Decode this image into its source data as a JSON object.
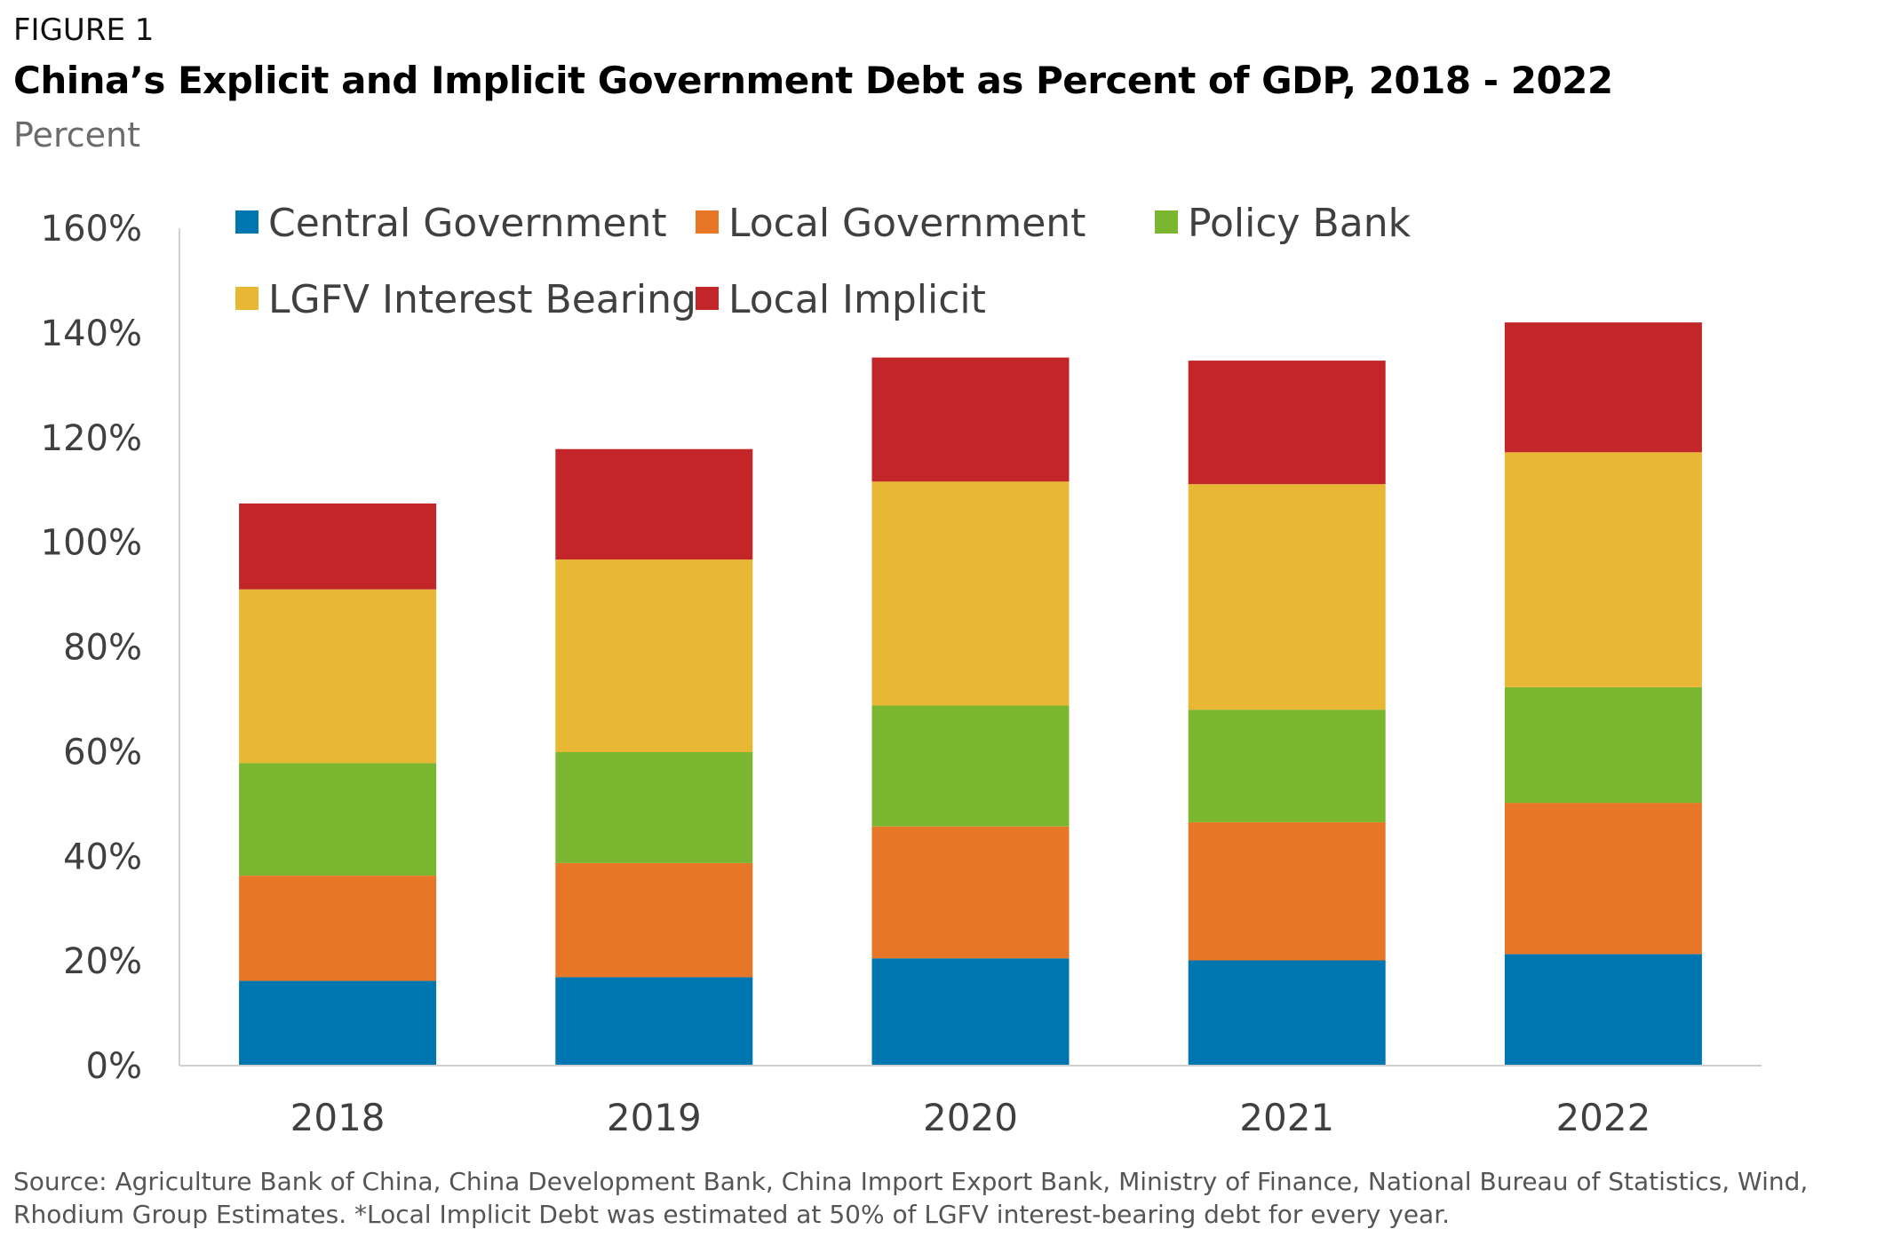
{
  "figure_label": "FIGURE 1",
  "source_note": "Source: Agriculture Bank of China, China Development Bank, China Import Export Bank, Ministry of Finance, National Bureau of Statistics, Wind, Rhodium Group Estimates. *Local Implicit Debt was estimated at 50% of LGFV interest-bearing debt for every year.",
  "chart_data": {
    "type": "bar",
    "stacked": true,
    "title": "China’s Explicit and Implicit Government Debt as Percent of GDP, 2018 - 2022",
    "subtitle": "Percent",
    "xlabel": "",
    "ylabel": "",
    "ylim": [
      0,
      160
    ],
    "yticks": [
      0,
      20,
      40,
      60,
      80,
      100,
      120,
      140,
      160
    ],
    "ytick_labels": [
      "0%",
      "20%",
      "40%",
      "60%",
      "80%",
      "100%",
      "120%",
      "140%",
      "160%"
    ],
    "grid": false,
    "legend_position": "top",
    "categories": [
      "2018",
      "2019",
      "2020",
      "2021",
      "2022"
    ],
    "series": [
      {
        "name": "Central Government",
        "color": "#0076b0",
        "values": [
          16.2,
          16.9,
          20.5,
          20.1,
          21.3
        ]
      },
      {
        "name": "Local Government",
        "color": "#e87627",
        "values": [
          20.1,
          21.8,
          25.2,
          26.4,
          28.9
        ]
      },
      {
        "name": "Policy Bank",
        "color": "#7bb630",
        "values": [
          21.5,
          21.2,
          23.1,
          21.5,
          22.1
        ]
      },
      {
        "name": "LGFV Interest Bearing",
        "color": "#e8b834",
        "values": [
          33.2,
          36.8,
          42.8,
          43.1,
          44.9
        ]
      },
      {
        "name": "Local Implicit",
        "color": "#c32628",
        "values": [
          16.4,
          21.1,
          23.7,
          23.6,
          24.8
        ]
      }
    ]
  }
}
